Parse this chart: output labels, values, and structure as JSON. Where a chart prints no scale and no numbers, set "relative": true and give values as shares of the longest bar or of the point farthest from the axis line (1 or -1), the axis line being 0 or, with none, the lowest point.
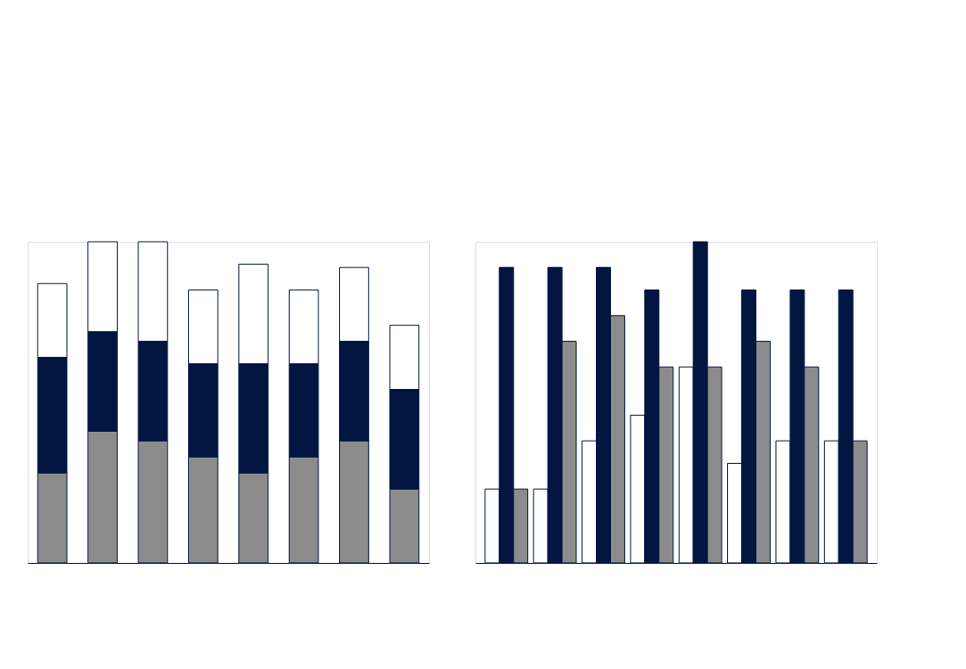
{
  "chart_data": [
    {
      "type": "bar",
      "stacked": true,
      "relative": true,
      "categories": [
        null,
        null,
        null,
        null,
        null,
        null,
        null,
        null
      ],
      "series": [
        {
          "color": "#8c8c8c",
          "values": [
            0.28,
            0.41,
            0.38,
            0.33,
            0.28,
            0.33,
            0.38,
            0.23
          ]
        },
        {
          "color": "#021641",
          "values": [
            0.36,
            0.31,
            0.31,
            0.29,
            0.34,
            0.29,
            0.31,
            0.31
          ]
        },
        {
          "color": "#ffffff",
          "values": [
            0.23,
            0.28,
            0.31,
            0.23,
            0.31,
            0.23,
            0.23,
            0.2
          ]
        }
      ]
    },
    {
      "type": "bar",
      "relative": true,
      "categories": [
        null,
        null,
        null,
        null,
        null,
        null,
        null,
        null
      ],
      "series": [
        {
          "color": "#ffffff",
          "values": [
            0.23,
            0.23,
            0.38,
            0.46,
            0.61,
            0.31,
            0.38,
            0.38
          ]
        },
        {
          "color": "#021641",
          "values": [
            0.92,
            0.92,
            0.92,
            0.85,
            1,
            0.85,
            0.85,
            0.85
          ]
        },
        {
          "color": "#8c8c8c",
          "values": [
            0.23,
            0.69,
            0.77,
            0.61,
            0.61,
            0.69,
            0.61,
            0.38
          ]
        }
      ]
    }
  ]
}
